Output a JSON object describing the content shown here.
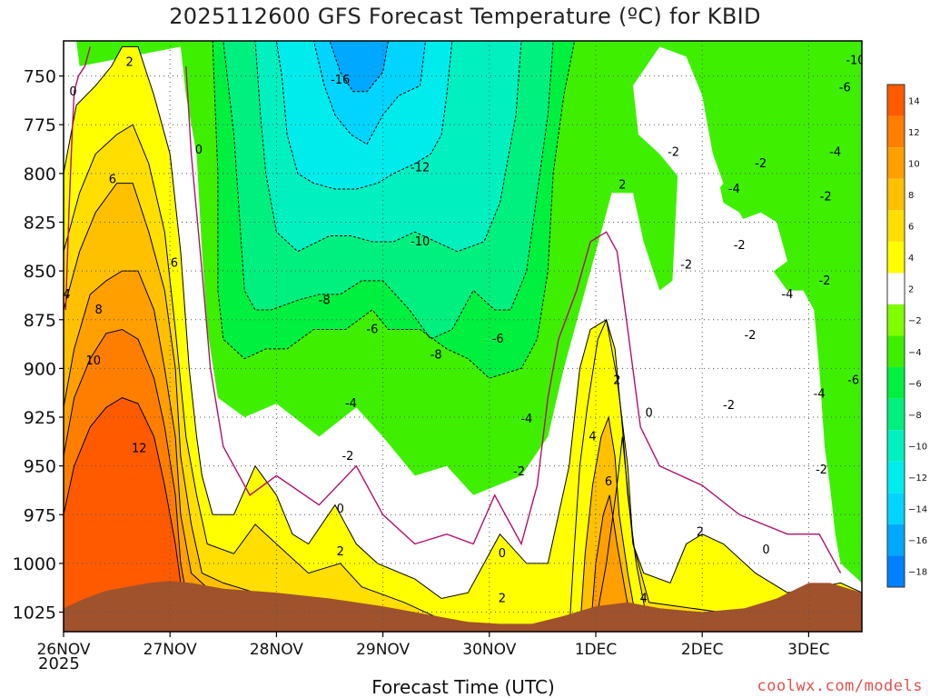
{
  "chart_data": {
    "type": "heatmap",
    "title": "2025112600 GFS Forecast Temperature (ºC) for KBID",
    "xlabel": "Forecast Time (UTC)",
    "ylabel": "",
    "credit": "coolwx.com/models",
    "x_ticks": [
      "26NOV",
      "27NOV",
      "28NOV",
      "29NOV",
      "30NOV",
      "1DEC",
      "2DEC",
      "3DEC"
    ],
    "x_tick_sub": "2025",
    "y_ticks": [
      "750",
      "775",
      "800",
      "825",
      "850",
      "875",
      "900",
      "925",
      "950",
      "975",
      "1000",
      "1025"
    ],
    "ylim": [
      1035,
      732
    ],
    "x_range_days": [
      0,
      7.5
    ],
    "colorbar": {
      "levels": [
        14,
        12,
        10,
        8,
        6,
        4,
        2,
        -2,
        -4,
        -6,
        -8,
        -10,
        -12,
        -14,
        -16,
        -18
      ],
      "colors": [
        "#ff5a00",
        "#ff7e00",
        "#ff9f00",
        "#ffc000",
        "#ffde00",
        "#ffff00",
        "#ffffff",
        "#80ff00",
        "#3ef000",
        "#00f040",
        "#00f080",
        "#00f0c0",
        "#00ecec",
        "#00d4ff",
        "#00a8ff",
        "#0080ff"
      ]
    },
    "contour_labels": [
      {
        "text": "2",
        "x": 0.62,
        "p": 743
      },
      {
        "text": "0",
        "x": 0.09,
        "p": 758
      },
      {
        "text": "6",
        "x": 0.46,
        "p": 803
      },
      {
        "text": "0",
        "x": 1.27,
        "p": 788
      },
      {
        "text": "6",
        "x": 1.04,
        "p": 846
      },
      {
        "text": "4",
        "x": 0.03,
        "p": 862
      },
      {
        "text": "8",
        "x": 0.33,
        "p": 870
      },
      {
        "text": "10",
        "x": 0.28,
        "p": 896
      },
      {
        "text": "12",
        "x": 0.71,
        "p": 941
      },
      {
        "text": "-16",
        "x": 2.6,
        "p": 752
      },
      {
        "text": "-12",
        "x": 3.35,
        "p": 797
      },
      {
        "text": "-10",
        "x": 3.35,
        "p": 835
      },
      {
        "text": "-8",
        "x": 2.45,
        "p": 865
      },
      {
        "text": "-6",
        "x": 2.9,
        "p": 880
      },
      {
        "text": "-8",
        "x": 3.5,
        "p": 893
      },
      {
        "text": "-6",
        "x": 4.08,
        "p": 885
      },
      {
        "text": "-4",
        "x": 2.7,
        "p": 918
      },
      {
        "text": "-2",
        "x": 2.67,
        "p": 945
      },
      {
        "text": "0",
        "x": 2.6,
        "p": 972
      },
      {
        "text": "2",
        "x": 2.6,
        "p": 994
      },
      {
        "text": "-4",
        "x": 4.35,
        "p": 926
      },
      {
        "text": "-2",
        "x": 4.28,
        "p": 953
      },
      {
        "text": "0",
        "x": 4.12,
        "p": 995
      },
      {
        "text": "2",
        "x": 4.12,
        "p": 1018
      },
      {
        "text": "2",
        "x": 5.25,
        "p": 806
      },
      {
        "text": "-2",
        "x": 5.73,
        "p": 789
      },
      {
        "text": "2",
        "x": 5.2,
        "p": 906
      },
      {
        "text": "0",
        "x": 5.5,
        "p": 923
      },
      {
        "text": "4",
        "x": 4.97,
        "p": 935
      },
      {
        "text": "6",
        "x": 5.12,
        "p": 958
      },
      {
        "text": "4",
        "x": 5.45,
        "p": 1018
      },
      {
        "text": "-2",
        "x": 5.85,
        "p": 847
      },
      {
        "text": "-2",
        "x": 6.55,
        "p": 795
      },
      {
        "text": "-4",
        "x": 6.3,
        "p": 808
      },
      {
        "text": "-2",
        "x": 6.35,
        "p": 837
      },
      {
        "text": "-4",
        "x": 6.8,
        "p": 862
      },
      {
        "text": "-2",
        "x": 6.45,
        "p": 883
      },
      {
        "text": "-2",
        "x": 6.25,
        "p": 919
      },
      {
        "text": "2",
        "x": 5.98,
        "p": 984
      },
      {
        "text": "0",
        "x": 6.6,
        "p": 993
      },
      {
        "text": "-10",
        "x": 7.44,
        "p": 742
      },
      {
        "text": "-6",
        "x": 7.34,
        "p": 756
      },
      {
        "text": "-4",
        "x": 7.25,
        "p": 789
      },
      {
        "text": "-2",
        "x": 7.16,
        "p": 812
      },
      {
        "text": "-2",
        "x": 7.15,
        "p": 855
      },
      {
        "text": "-6",
        "x": 7.42,
        "p": 906
      },
      {
        "text": "-4",
        "x": 7.1,
        "p": 913
      },
      {
        "text": "-2",
        "x": 7.12,
        "p": 952
      }
    ]
  }
}
